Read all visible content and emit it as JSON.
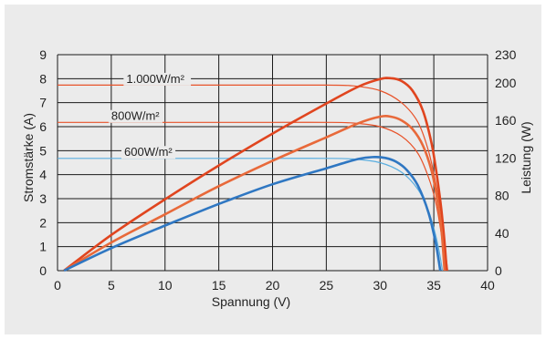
{
  "chart_data": {
    "type": "line",
    "xlabel": "Spannung (V)",
    "ylabel_left": "Stromstärke (A)",
    "ylabel_right": "Leistung (W)",
    "xlim": [
      0,
      40
    ],
    "ylim_left": [
      0,
      9
    ],
    "ylim_right": [
      0,
      230
    ],
    "x_ticks": [
      "0",
      "5",
      "10",
      "15",
      "20",
      "25",
      "30",
      "35",
      "40"
    ],
    "y_left_ticks": [
      "0",
      "1",
      "2",
      "3",
      "4",
      "5",
      "6",
      "7",
      "8",
      "9"
    ],
    "y_right_ticks": [
      "0",
      "40",
      "80",
      "120",
      "160",
      "200",
      "230"
    ],
    "grid": true,
    "series": [
      {
        "name": "1.000W/m²",
        "axis": "left",
        "kind": "current",
        "color": "#e8532a",
        "x": [
          0,
          5,
          10,
          15,
          20,
          25,
          27.5,
          30,
          32,
          33.5,
          34.5,
          35.2,
          35.7,
          36.0,
          36.3
        ],
        "y": [
          7.73,
          7.73,
          7.73,
          7.73,
          7.73,
          7.73,
          7.7,
          7.5,
          7.0,
          6.2,
          5.0,
          3.6,
          2.3,
          1.1,
          0
        ]
      },
      {
        "name": "800W/m²",
        "axis": "left",
        "kind": "current",
        "color": "#e8532a",
        "x": [
          0,
          5,
          10,
          15,
          20,
          25,
          27.5,
          30,
          32,
          33.5,
          34.5,
          35.2,
          35.7,
          36.1
        ],
        "y": [
          6.18,
          6.18,
          6.18,
          6.18,
          6.18,
          6.18,
          6.15,
          6.0,
          5.6,
          4.9,
          3.9,
          2.8,
          1.5,
          0
        ]
      },
      {
        "name": "600W/m²",
        "axis": "left",
        "kind": "current",
        "color": "#5aaee0",
        "x": [
          0,
          5,
          10,
          15,
          20,
          25,
          27.5,
          30,
          32,
          33.5,
          34.5,
          35.1,
          35.5,
          35.8
        ],
        "y": [
          4.68,
          4.68,
          4.68,
          4.68,
          4.68,
          4.68,
          4.65,
          4.5,
          4.1,
          3.4,
          2.5,
          1.6,
          0.8,
          0
        ]
      },
      {
        "name": "1.000W/m²",
        "axis": "right",
        "kind": "power",
        "color": "#e0451f",
        "x": [
          0.6,
          5,
          10,
          15,
          20,
          25,
          28,
          30,
          31,
          32,
          33,
          34,
          34.8,
          35.3,
          35.7,
          36.0,
          36.2
        ],
        "y": [
          0,
          38,
          76,
          112,
          146,
          178,
          196,
          204,
          205,
          202,
          192,
          170,
          135,
          100,
          65,
          30,
          0
        ]
      },
      {
        "name": "800W/m²",
        "axis": "right",
        "kind": "power",
        "color": "#e8693a",
        "x": [
          0.6,
          5,
          10,
          15,
          20,
          25,
          28,
          30,
          31,
          32,
          33,
          34,
          34.8,
          35.3,
          35.7,
          36.0
        ],
        "y": [
          0,
          30,
          60,
          90,
          117,
          142,
          157,
          164,
          164,
          160,
          151,
          133,
          106,
          77,
          45,
          0
        ]
      },
      {
        "name": "600W/m²",
        "axis": "right",
        "kind": "power",
        "color": "#2f77c2",
        "x": [
          0.6,
          5,
          10,
          15,
          20,
          25,
          28,
          29.5,
          30.5,
          31.5,
          32.5,
          33.5,
          34.5,
          35.2,
          35.6
        ],
        "y": [
          0,
          24,
          48,
          71,
          92,
          109,
          119,
          121,
          120,
          116,
          107,
          91,
          62,
          28,
          0
        ]
      }
    ],
    "annotations": [
      {
        "text": "1.000W/m²",
        "x": 6.4,
        "y": 7.75
      },
      {
        "text": "800W/m²",
        "x": 5.0,
        "y": 6.2
      },
      {
        "text": "600W/m²",
        "x": 6.2,
        "y": 4.7
      }
    ]
  }
}
